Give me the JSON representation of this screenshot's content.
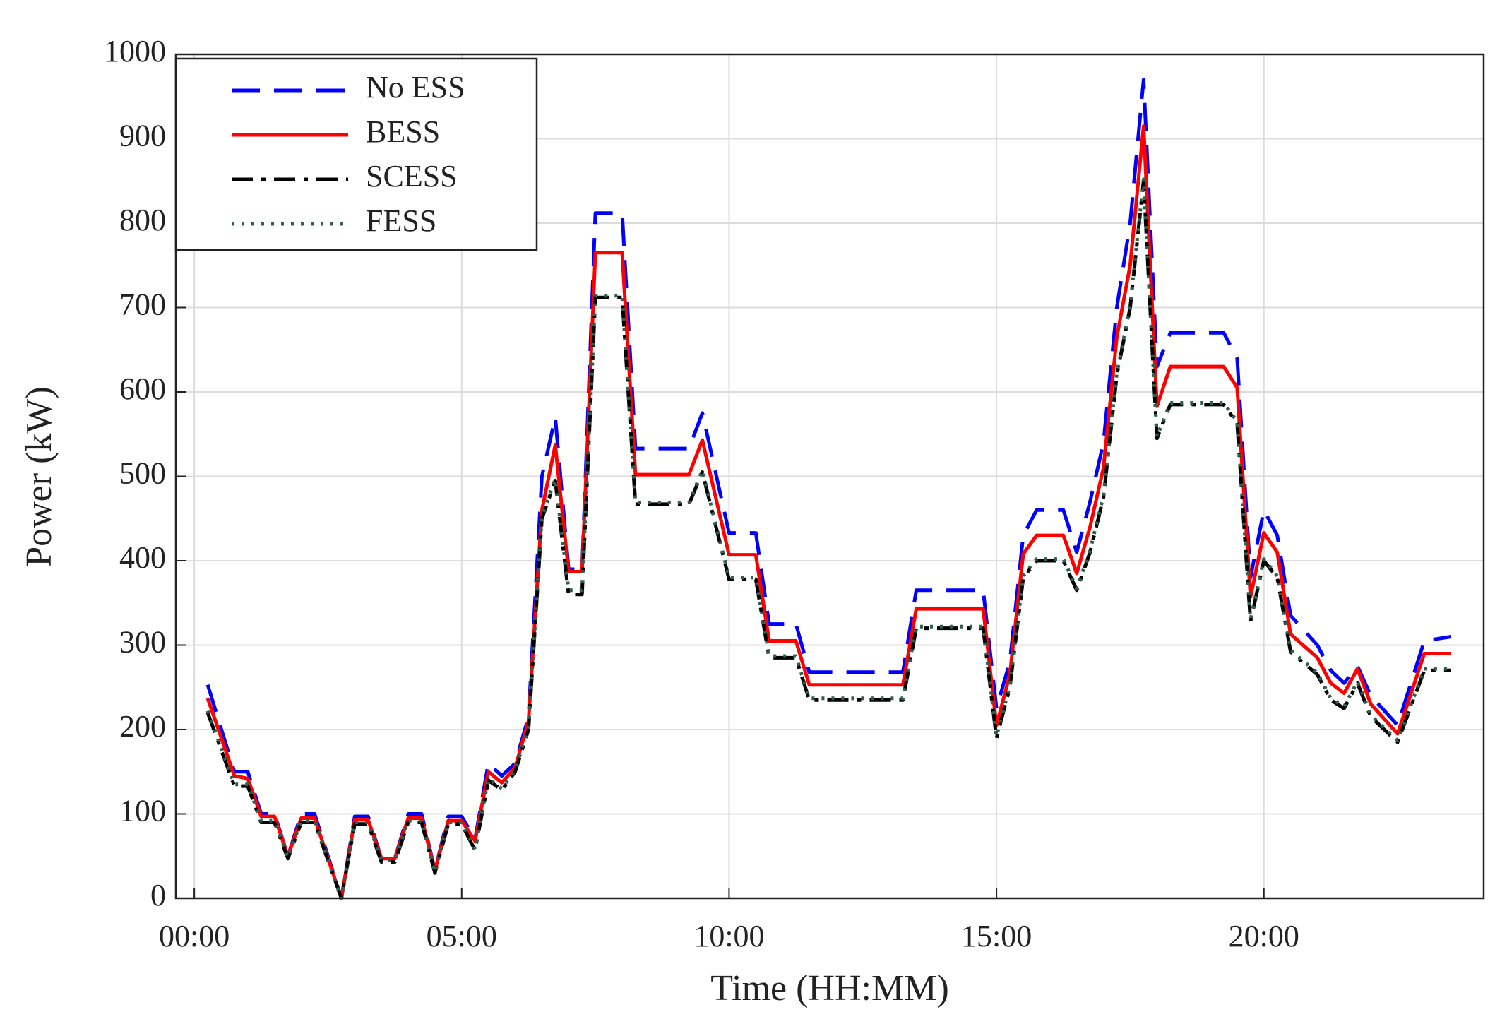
{
  "chart_data": {
    "type": "line",
    "xlabel": "Time (HH:MM)",
    "ylabel": "Power (kW)",
    "xlim": [
      -0.345,
      24.11
    ],
    "ylim": [
      0,
      1000
    ],
    "xticks": [
      {
        "value": 0,
        "label": "00:00"
      },
      {
        "value": 5,
        "label": "05:00"
      },
      {
        "value": 10,
        "label": "10:00"
      },
      {
        "value": 15,
        "label": "15:00"
      },
      {
        "value": 20,
        "label": "20:00"
      }
    ],
    "yticks": [
      0,
      100,
      200,
      300,
      400,
      500,
      600,
      700,
      800,
      900,
      1000
    ],
    "grid": true,
    "legend": "upper left",
    "x": [
      0.25,
      0.75,
      1.0,
      1.25,
      1.5,
      1.75,
      2.0,
      2.25,
      2.75,
      3.0,
      3.25,
      3.5,
      3.75,
      4.0,
      4.25,
      4.5,
      4.75,
      5.0,
      5.25,
      5.5,
      5.75,
      6.0,
      6.25,
      6.5,
      6.75,
      7.0,
      7.25,
      7.5,
      8.0,
      8.25,
      9.25,
      9.5,
      10.0,
      10.5,
      10.75,
      11.25,
      11.5,
      13.25,
      13.5,
      14.75,
      15.0,
      15.25,
      15.5,
      15.75,
      16.25,
      16.5,
      16.75,
      17.0,
      17.25,
      17.5,
      17.75,
      18.0,
      18.25,
      19.25,
      19.5,
      19.75,
      20.0,
      20.25,
      20.5,
      21.0,
      21.25,
      21.5,
      21.75,
      22.0,
      22.5,
      23.0,
      23.5
    ],
    "series": [
      {
        "name": "No ESS",
        "color": "#0000ff",
        "linestyle": "dashed",
        "values": [
          253,
          150,
          150,
          100,
          100,
          50,
          100,
          100,
          0,
          97,
          97,
          47,
          47,
          100,
          100,
          33,
          97,
          97,
          70,
          160,
          145,
          160,
          215,
          500,
          570,
          390,
          390,
          812,
          812,
          533,
          533,
          575,
          433,
          433,
          325,
          325,
          268,
          268,
          365,
          365,
          225,
          280,
          430,
          460,
          460,
          410,
          470,
          540,
          700,
          800,
          970,
          630,
          670,
          670,
          640,
          380,
          460,
          430,
          335,
          300,
          270,
          255,
          275,
          240,
          205,
          305,
          310
        ]
      },
      {
        "name": "BESS",
        "color": "#ff0000",
        "linestyle": "solid",
        "values": [
          237,
          145,
          142,
          97,
          97,
          50,
          95,
          95,
          0,
          93,
          93,
          47,
          47,
          95,
          95,
          33,
          92,
          92,
          68,
          150,
          137,
          155,
          210,
          460,
          537,
          387,
          387,
          765,
          765,
          502,
          502,
          543,
          407,
          407,
          305,
          305,
          253,
          253,
          343,
          343,
          205,
          265,
          408,
          430,
          430,
          385,
          440,
          510,
          665,
          750,
          915,
          583,
          630,
          630,
          605,
          357,
          433,
          410,
          313,
          285,
          255,
          243,
          272,
          230,
          195,
          290,
          290
        ]
      },
      {
        "name": "SCESS",
        "color": "#000000",
        "linestyle": "dashdot",
        "values": [
          220,
          133,
          133,
          90,
          90,
          47,
          90,
          90,
          0,
          88,
          88,
          43,
          43,
          90,
          90,
          30,
          88,
          88,
          57,
          140,
          128,
          150,
          200,
          450,
          495,
          360,
          360,
          712,
          712,
          467,
          467,
          505,
          378,
          378,
          285,
          285,
          235,
          235,
          320,
          320,
          190,
          250,
          380,
          400,
          400,
          365,
          410,
          475,
          620,
          700,
          850,
          545,
          585,
          585,
          563,
          328,
          400,
          380,
          292,
          265,
          235,
          225,
          255,
          215,
          185,
          270,
          270
        ]
      },
      {
        "name": "FESS",
        "color": "#2f5f4f",
        "linestyle": "dotted",
        "values": [
          222,
          135,
          135,
          92,
          92,
          48,
          92,
          92,
          0,
          90,
          90,
          45,
          45,
          92,
          92,
          31,
          90,
          90,
          58,
          142,
          130,
          152,
          202,
          452,
          497,
          365,
          365,
          714,
          714,
          469,
          469,
          507,
          380,
          380,
          287,
          287,
          237,
          237,
          322,
          322,
          192,
          252,
          382,
          402,
          402,
          367,
          412,
          477,
          622,
          702,
          852,
          547,
          587,
          587,
          565,
          330,
          402,
          382,
          294,
          267,
          237,
          227,
          257,
          217,
          187,
          272,
          272
        ]
      }
    ]
  }
}
